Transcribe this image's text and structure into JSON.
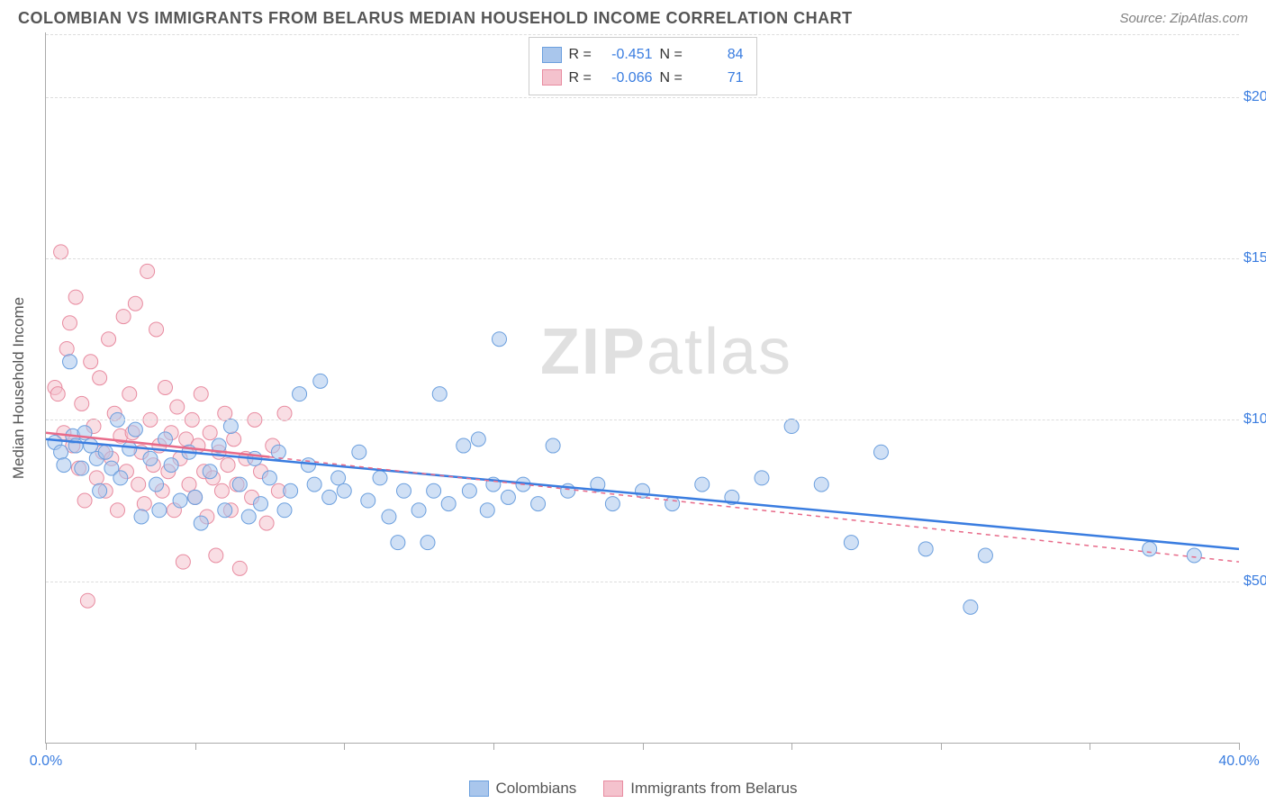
{
  "header": {
    "title": "COLOMBIAN VS IMMIGRANTS FROM BELARUS MEDIAN HOUSEHOLD INCOME CORRELATION CHART",
    "source": "Source: ZipAtlas.com"
  },
  "chart": {
    "type": "scatter",
    "ylabel": "Median Household Income",
    "xlim": [
      0,
      40
    ],
    "ylim": [
      0,
      220000
    ],
    "x_ticks": [
      0,
      5,
      10,
      15,
      20,
      25,
      30,
      35,
      40
    ],
    "x_tick_labels": {
      "0": "0.0%",
      "40": "40.0%"
    },
    "y_gridlines": [
      50000,
      100000,
      150000,
      200000
    ],
    "y_tick_labels": {
      "50000": "$50,000",
      "100000": "$100,000",
      "150000": "$150,000",
      "200000": "$200,000"
    },
    "grid_color": "#dddddd",
    "axis_color": "#aaaaaa",
    "background_color": "#ffffff",
    "label_color": "#3a7de0",
    "marker_radius": 8,
    "marker_opacity": 0.55,
    "watermark": "ZIPatlas"
  },
  "series": [
    {
      "name": "Colombians",
      "color_fill": "#a9c6ec",
      "color_stroke": "#6b9fde",
      "line_color": "#3a7de0",
      "R": "-0.451",
      "N": "84",
      "trend": {
        "x1": 0,
        "y1": 94000,
        "x2": 40,
        "y2": 60000
      },
      "points": [
        [
          0.3,
          93000
        ],
        [
          0.5,
          90000
        ],
        [
          0.6,
          86000
        ],
        [
          0.8,
          118000
        ],
        [
          0.9,
          95000
        ],
        [
          1.0,
          92000
        ],
        [
          1.2,
          85000
        ],
        [
          1.3,
          96000
        ],
        [
          1.5,
          92000
        ],
        [
          1.7,
          88000
        ],
        [
          1.8,
          78000
        ],
        [
          2.0,
          90000
        ],
        [
          2.2,
          85000
        ],
        [
          2.4,
          100000
        ],
        [
          2.5,
          82000
        ],
        [
          2.8,
          91000
        ],
        [
          3.0,
          97000
        ],
        [
          3.2,
          70000
        ],
        [
          3.5,
          88000
        ],
        [
          3.7,
          80000
        ],
        [
          3.8,
          72000
        ],
        [
          4.0,
          94000
        ],
        [
          4.2,
          86000
        ],
        [
          4.5,
          75000
        ],
        [
          4.8,
          90000
        ],
        [
          5.0,
          76000
        ],
        [
          5.2,
          68000
        ],
        [
          5.5,
          84000
        ],
        [
          5.8,
          92000
        ],
        [
          6.0,
          72000
        ],
        [
          6.2,
          98000
        ],
        [
          6.5,
          80000
        ],
        [
          6.8,
          70000
        ],
        [
          7.0,
          88000
        ],
        [
          7.2,
          74000
        ],
        [
          7.5,
          82000
        ],
        [
          7.8,
          90000
        ],
        [
          8.0,
          72000
        ],
        [
          8.2,
          78000
        ],
        [
          8.5,
          108000
        ],
        [
          8.8,
          86000
        ],
        [
          9.0,
          80000
        ],
        [
          9.2,
          112000
        ],
        [
          9.5,
          76000
        ],
        [
          9.8,
          82000
        ],
        [
          10.0,
          78000
        ],
        [
          10.5,
          90000
        ],
        [
          10.8,
          75000
        ],
        [
          11.2,
          82000
        ],
        [
          11.5,
          70000
        ],
        [
          11.8,
          62000
        ],
        [
          12.0,
          78000
        ],
        [
          12.5,
          72000
        ],
        [
          12.8,
          62000
        ],
        [
          13.0,
          78000
        ],
        [
          13.2,
          108000
        ],
        [
          13.5,
          74000
        ],
        [
          14.0,
          92000
        ],
        [
          14.2,
          78000
        ],
        [
          14.5,
          94000
        ],
        [
          14.8,
          72000
        ],
        [
          15.0,
          80000
        ],
        [
          15.2,
          125000
        ],
        [
          15.5,
          76000
        ],
        [
          16.0,
          80000
        ],
        [
          16.5,
          74000
        ],
        [
          17.0,
          92000
        ],
        [
          17.5,
          78000
        ],
        [
          18.5,
          80000
        ],
        [
          19.0,
          74000
        ],
        [
          20.0,
          78000
        ],
        [
          21.0,
          74000
        ],
        [
          22.0,
          80000
        ],
        [
          23.0,
          76000
        ],
        [
          24.0,
          82000
        ],
        [
          25.0,
          98000
        ],
        [
          26.0,
          80000
        ],
        [
          27.0,
          62000
        ],
        [
          28.0,
          90000
        ],
        [
          29.5,
          60000
        ],
        [
          31.0,
          42000
        ],
        [
          31.5,
          58000
        ],
        [
          37.0,
          60000
        ],
        [
          38.5,
          58000
        ]
      ]
    },
    {
      "name": "Immigrants from Belarus",
      "color_fill": "#f4c2cd",
      "color_stroke": "#e88ba0",
      "line_color": "#e86b8a",
      "R": "-0.066",
      "N": "71",
      "trend": {
        "x1": 0,
        "y1": 96000,
        "x2": 40,
        "y2": 56000
      },
      "trend_solid_until": 7.5,
      "points": [
        [
          0.3,
          110000
        ],
        [
          0.4,
          108000
        ],
        [
          0.5,
          152000
        ],
        [
          0.6,
          96000
        ],
        [
          0.7,
          122000
        ],
        [
          0.8,
          130000
        ],
        [
          0.9,
          92000
        ],
        [
          1.0,
          138000
        ],
        [
          1.1,
          85000
        ],
        [
          1.2,
          105000
        ],
        [
          1.3,
          75000
        ],
        [
          1.4,
          44000
        ],
        [
          1.5,
          118000
        ],
        [
          1.6,
          98000
        ],
        [
          1.7,
          82000
        ],
        [
          1.8,
          113000
        ],
        [
          1.9,
          90000
        ],
        [
          2.0,
          78000
        ],
        [
          2.1,
          125000
        ],
        [
          2.2,
          88000
        ],
        [
          2.3,
          102000
        ],
        [
          2.4,
          72000
        ],
        [
          2.5,
          95000
        ],
        [
          2.6,
          132000
        ],
        [
          2.7,
          84000
        ],
        [
          2.8,
          108000
        ],
        [
          2.9,
          96000
        ],
        [
          3.0,
          136000
        ],
        [
          3.1,
          80000
        ],
        [
          3.2,
          90000
        ],
        [
          3.3,
          74000
        ],
        [
          3.4,
          146000
        ],
        [
          3.5,
          100000
        ],
        [
          3.6,
          86000
        ],
        [
          3.7,
          128000
        ],
        [
          3.8,
          92000
        ],
        [
          3.9,
          78000
        ],
        [
          4.0,
          110000
        ],
        [
          4.1,
          84000
        ],
        [
          4.2,
          96000
        ],
        [
          4.3,
          72000
        ],
        [
          4.4,
          104000
        ],
        [
          4.5,
          88000
        ],
        [
          4.6,
          56000
        ],
        [
          4.7,
          94000
        ],
        [
          4.8,
          80000
        ],
        [
          4.9,
          100000
        ],
        [
          5.0,
          76000
        ],
        [
          5.1,
          92000
        ],
        [
          5.2,
          108000
        ],
        [
          5.3,
          84000
        ],
        [
          5.4,
          70000
        ],
        [
          5.5,
          96000
        ],
        [
          5.6,
          82000
        ],
        [
          5.7,
          58000
        ],
        [
          5.8,
          90000
        ],
        [
          5.9,
          78000
        ],
        [
          6.0,
          102000
        ],
        [
          6.1,
          86000
        ],
        [
          6.2,
          72000
        ],
        [
          6.3,
          94000
        ],
        [
          6.4,
          80000
        ],
        [
          6.5,
          54000
        ],
        [
          6.7,
          88000
        ],
        [
          6.9,
          76000
        ],
        [
          7.0,
          100000
        ],
        [
          7.2,
          84000
        ],
        [
          7.4,
          68000
        ],
        [
          7.6,
          92000
        ],
        [
          7.8,
          78000
        ],
        [
          8.0,
          102000
        ]
      ]
    }
  ],
  "stats_box": {
    "rows": [
      {
        "swatch_fill": "#a9c6ec",
        "swatch_stroke": "#6b9fde",
        "R": "-0.451",
        "N": "84"
      },
      {
        "swatch_fill": "#f4c2cd",
        "swatch_stroke": "#e88ba0",
        "R": "-0.066",
        "N": "71"
      }
    ]
  },
  "bottom_legend": [
    {
      "swatch_fill": "#a9c6ec",
      "swatch_stroke": "#6b9fde",
      "label": "Colombians"
    },
    {
      "swatch_fill": "#f4c2cd",
      "swatch_stroke": "#e88ba0",
      "label": "Immigrants from Belarus"
    }
  ]
}
